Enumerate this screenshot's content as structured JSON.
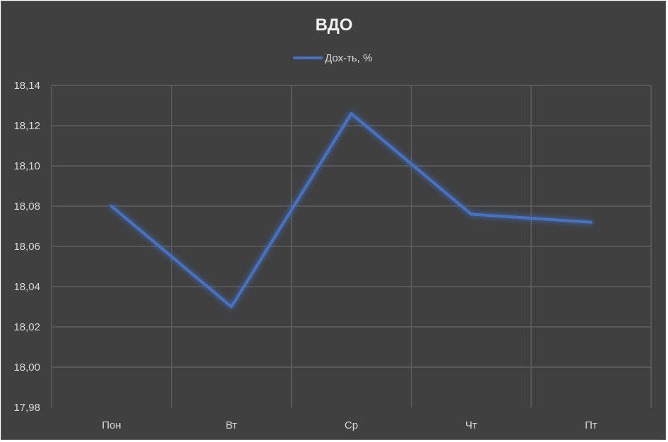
{
  "chart_data": {
    "type": "line",
    "title": "ВДО",
    "categories": [
      "Пон",
      "Вт",
      "Ср",
      "Чт",
      "Пт"
    ],
    "series": [
      {
        "name": "Дох-ть, %",
        "values": [
          18.08,
          18.03,
          18.126,
          18.076,
          18.072
        ],
        "color": "#4472C4"
      }
    ],
    "ylim": [
      17.98,
      18.14
    ],
    "y_tick_step": 0.02,
    "y_tick_labels": [
      "17,98",
      "18,00",
      "18,02",
      "18,04",
      "18,06",
      "18,08",
      "18,10",
      "18,12",
      "18,14"
    ],
    "xlabel": "",
    "ylabel": "",
    "legend_position": "top-center",
    "grid": true,
    "background": "#404040"
  }
}
